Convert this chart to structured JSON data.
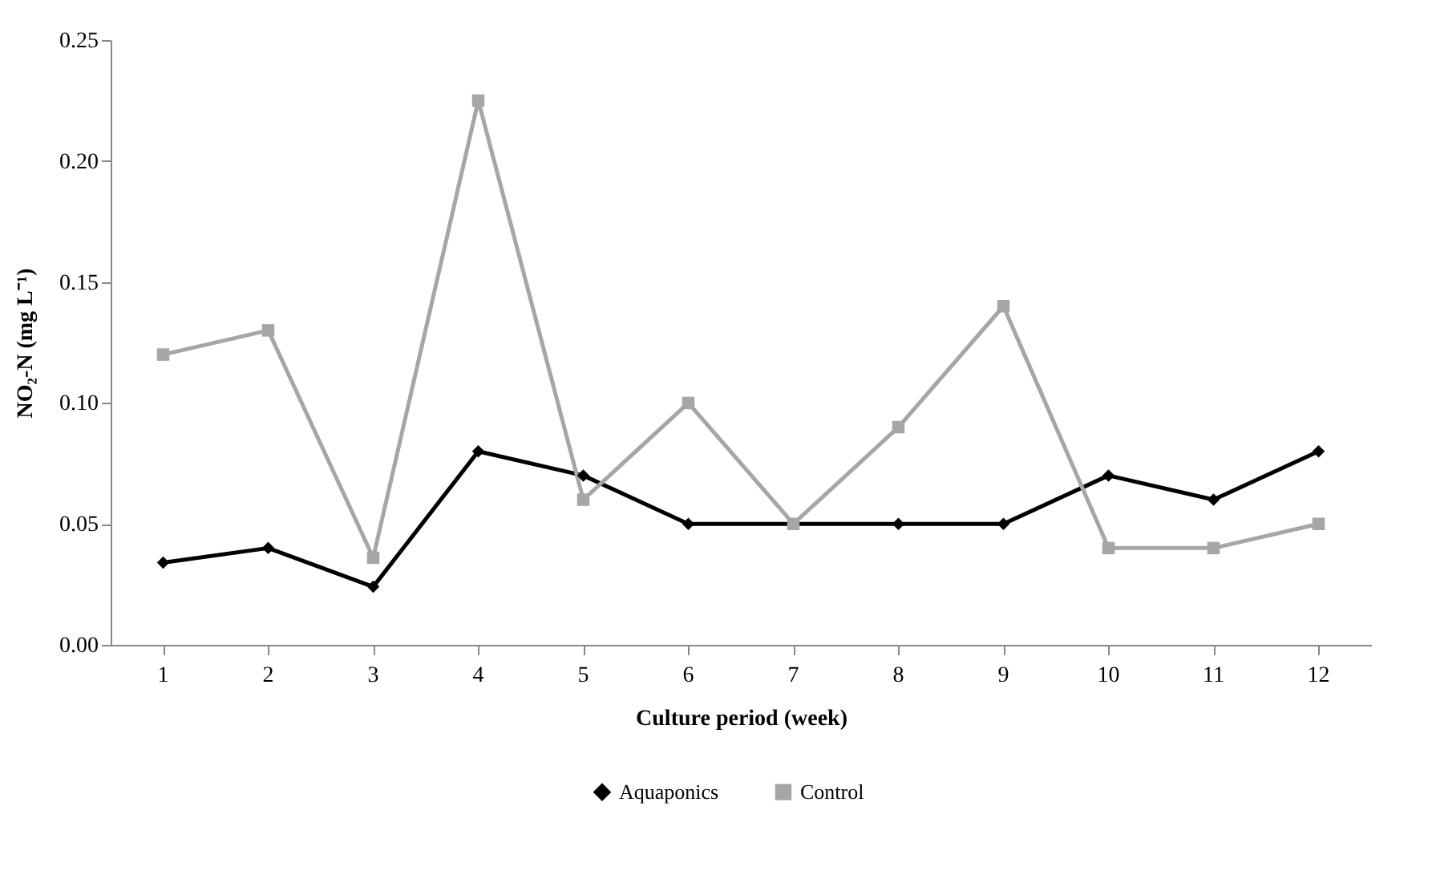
{
  "chart_data": {
    "type": "line",
    "xlabel": "Culture period (week)",
    "ylabel": "NO₂-N (mg L⁻¹)",
    "categories": [
      "1",
      "2",
      "3",
      "4",
      "5",
      "6",
      "7",
      "8",
      "9",
      "10",
      "11",
      "12"
    ],
    "series": [
      {
        "name": "Aquaponics",
        "color": "#000000",
        "marker": "diamond",
        "values": [
          0.034,
          0.04,
          0.024,
          0.08,
          0.07,
          0.05,
          0.05,
          0.05,
          0.05,
          0.07,
          0.06,
          0.08
        ]
      },
      {
        "name": "Control",
        "color": "#a6a6a6",
        "marker": "square",
        "values": [
          0.12,
          0.13,
          0.036,
          0.225,
          0.06,
          0.1,
          0.05,
          0.09,
          0.14,
          0.04,
          0.04,
          0.05
        ]
      }
    ],
    "ylim": [
      0,
      0.25
    ],
    "yticks": [
      {
        "value": 0,
        "label": "0.00"
      },
      {
        "value": 0.05,
        "label": "0.05"
      },
      {
        "value": 0.1,
        "label": "0.10"
      },
      {
        "value": 0.15,
        "label": "0.15"
      },
      {
        "value": 0.2,
        "label": "0.20"
      },
      {
        "value": 0.25,
        "label": "0.25"
      }
    ],
    "grid": false,
    "legend": "bottom",
    "line_style": "solid"
  }
}
